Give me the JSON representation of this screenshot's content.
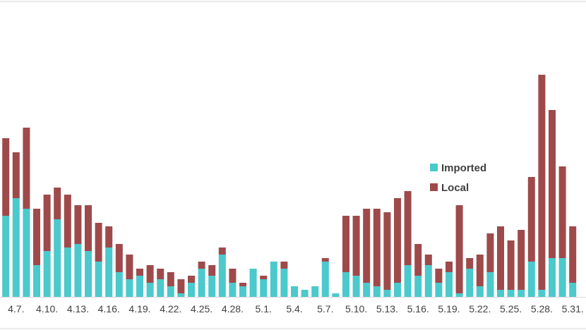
{
  "chart_data": {
    "type": "bar",
    "stacked": true,
    "grid": false,
    "legend_position": "right",
    "x": [
      "4.6.",
      "4.7.",
      "4.8.",
      "4.9.",
      "4.10.",
      "4.11.",
      "4.12.",
      "4.13.",
      "4.14.",
      "4.15.",
      "4.16.",
      "4.17.",
      "4.18.",
      "4.19.",
      "4.20.",
      "4.21.",
      "4.22.",
      "4.23.",
      "4.24.",
      "4.25.",
      "4.26.",
      "4.27.",
      "4.28.",
      "4.29.",
      "4.30.",
      "5.1.",
      "5.2.",
      "5.3.",
      "5.4.",
      "5.5.",
      "5.6.",
      "5.7.",
      "5.8.",
      "5.9.",
      "5.10.",
      "5.11.",
      "5.12.",
      "5.13.",
      "5.14.",
      "5.15.",
      "5.16.",
      "5.17.",
      "5.18.",
      "5.19.",
      "5.20.",
      "5.21.",
      "5.22.",
      "5.23.",
      "5.24.",
      "5.25.",
      "5.26.",
      "5.27.",
      "5.28.",
      "5.29.",
      "5.30.",
      "5.31.",
      "6.1."
    ],
    "tick_labels": [
      "4.7.",
      "4.10.",
      "4.13.",
      "4.16.",
      "4.19.",
      "4.22.",
      "4.25.",
      "4.28.",
      "5.1.",
      "5.4.",
      "5.7.",
      "5.10.",
      "5.13.",
      "5.16.",
      "5.19.",
      "5.22.",
      "5.25.",
      "5.28.",
      "5.31."
    ],
    "series": [
      {
        "name": "Imported",
        "color": "#4BC9CC",
        "values": [
          23,
          28,
          25,
          9,
          13,
          22,
          14,
          15,
          13,
          10,
          14,
          7,
          5,
          6,
          4,
          5,
          3,
          1,
          4,
          8,
          6,
          12,
          4,
          3,
          8,
          5,
          10,
          8,
          3,
          2,
          3,
          10,
          1,
          7,
          6,
          4,
          3,
          2,
          4,
          9,
          6,
          9,
          4,
          7,
          1,
          8,
          3,
          7,
          2,
          2,
          2,
          10,
          2,
          11,
          11,
          4,
          0
        ]
      },
      {
        "name": "Local",
        "color": "#9E4A4B",
        "values": [
          22,
          13,
          23,
          16,
          16,
          9,
          15,
          11,
          13,
          11,
          6,
          8,
          7,
          2,
          5,
          3,
          4,
          4,
          2,
          2,
          3,
          2,
          4,
          1,
          0,
          1,
          0,
          2,
          0,
          0,
          0,
          1,
          0,
          16,
          17,
          21,
          22,
          22,
          24,
          21,
          9,
          3,
          4,
          3,
          25,
          3,
          9,
          11,
          18,
          14,
          17,
          24,
          61,
          42,
          26,
          16,
          0
        ]
      }
    ],
    "y_max": 80
  }
}
